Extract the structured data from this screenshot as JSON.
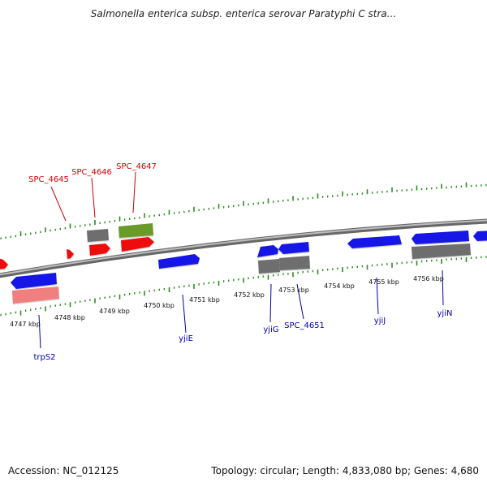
{
  "title": "Salmonella enterica subsp. enterica serovar Paratyphi C stra...",
  "footer": {
    "accession": "Accession: NC_012125",
    "summary": "Topology: circular; Length: 4,833,080 bp; Genes: 4,680"
  },
  "colors": {
    "background": "#ffffff",
    "backbone": "#8a8a8a",
    "tick": "#2e8b22",
    "gene_blue": "#1414e6",
    "gene_red": "#ee1010",
    "gene_pink": "#f08080",
    "gene_gray": "#6e6e6e",
    "gene_olive": "#6a9a2a",
    "label_red": "#cc0000",
    "label_blue": "#0000aa"
  },
  "scale": {
    "unit": "kbp",
    "tick_labels": [
      "4747 kbp",
      "4748 kbp",
      "4749 kbp",
      "4750 kbp",
      "4751 kbp",
      "4752 kbp",
      "4753 kbp",
      "4754 kbp",
      "4755 kbp",
      "4756 kbp"
    ]
  },
  "gene_labels": {
    "top": [
      "SPC_4645",
      "SPC_4646",
      "SPC_4647"
    ],
    "bottom": [
      "trpS2",
      "yjiE",
      "yjiG",
      "SPC_4651",
      "yjiJ",
      "yjiN"
    ]
  }
}
